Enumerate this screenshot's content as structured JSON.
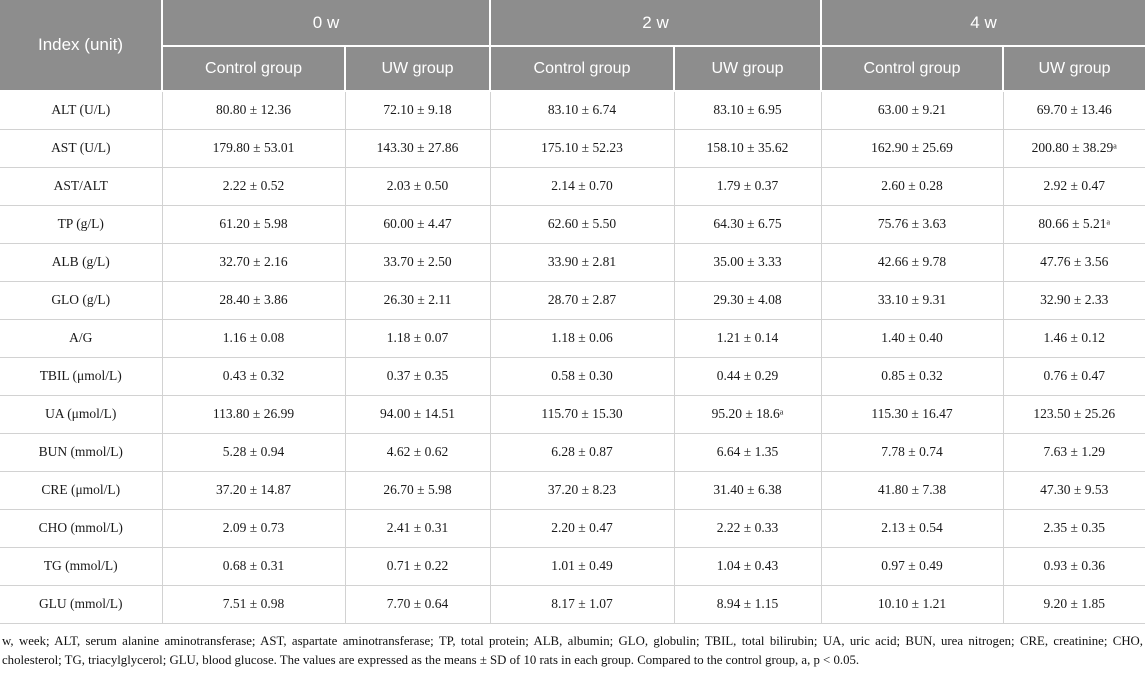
{
  "colors": {
    "header_bg": "#8d8d8d",
    "header_text": "#ffffff",
    "body_border": "#d2d2d2",
    "body_text": "#1a1a1a"
  },
  "table": {
    "header": {
      "index_label": "Index (unit)",
      "groups": [
        {
          "label": "0 w"
        },
        {
          "label": "2 w"
        },
        {
          "label": "4 w"
        }
      ],
      "subheaders": [
        "Control group",
        "UW group",
        "Control group",
        "UW group",
        "Control group",
        "UW group"
      ]
    },
    "rows": [
      {
        "index": "ALT (U/L)",
        "values": [
          "80.80 ± 12.36",
          "72.10 ± 9.18",
          "83.10 ± 6.74",
          "83.10 ± 6.95",
          "63.00 ± 9.21",
          "69.70 ± 13.46"
        ]
      },
      {
        "index": "AST (U/L)",
        "values": [
          "179.80 ± 53.01",
          "143.30 ± 27.86",
          "175.10 ± 52.23",
          "158.10 ± 35.62",
          "162.90 ± 25.69",
          "200.80 ± 38.29ᵃ"
        ]
      },
      {
        "index": "AST/ALT",
        "values": [
          "2.22 ± 0.52",
          "2.03 ± 0.50",
          "2.14 ± 0.70",
          "1.79 ± 0.37",
          "2.60 ± 0.28",
          "2.92 ± 0.47"
        ]
      },
      {
        "index": "TP (g/L)",
        "values": [
          "61.20 ± 5.98",
          "60.00 ± 4.47",
          "62.60 ± 5.50",
          "64.30 ± 6.75",
          "75.76 ± 3.63",
          "80.66 ± 5.21ᵃ"
        ]
      },
      {
        "index": "ALB (g/L)",
        "values": [
          "32.70 ± 2.16",
          "33.70 ± 2.50",
          "33.90 ± 2.81",
          "35.00 ± 3.33",
          "42.66 ± 9.78",
          "47.76 ± 3.56"
        ]
      },
      {
        "index": "GLO (g/L)",
        "values": [
          "28.40 ± 3.86",
          "26.30 ± 2.11",
          "28.70 ± 2.87",
          "29.30 ± 4.08",
          "33.10 ± 9.31",
          "32.90 ± 2.33"
        ]
      },
      {
        "index": "A/G",
        "values": [
          "1.16 ± 0.08",
          "1.18 ± 0.07",
          "1.18 ± 0.06",
          "1.21 ± 0.14",
          "1.40 ± 0.40",
          "1.46 ± 0.12"
        ]
      },
      {
        "index": "TBIL (μmol/L)",
        "values": [
          "0.43 ± 0.32",
          "0.37 ± 0.35",
          "0.58 ± 0.30",
          "0.44 ± 0.29",
          "0.85 ± 0.32",
          "0.76 ± 0.47"
        ]
      },
      {
        "index": "UA (μmol/L)",
        "values": [
          "113.80 ± 26.99",
          "94.00 ± 14.51",
          "115.70 ± 15.30",
          "95.20 ± 18.6ᵃ",
          "115.30 ± 16.47",
          "123.50 ± 25.26"
        ]
      },
      {
        "index": "BUN (mmol/L)",
        "values": [
          "5.28 ± 0.94",
          "4.62 ± 0.62",
          "6.28 ± 0.87",
          "6.64 ± 1.35",
          "7.78 ± 0.74",
          "7.63 ± 1.29"
        ]
      },
      {
        "index": "CRE (μmol/L)",
        "values": [
          "37.20 ± 14.87",
          "26.70 ± 5.98",
          "37.20 ± 8.23",
          "31.40 ± 6.38",
          "41.80 ± 7.38",
          "47.30 ± 9.53"
        ]
      },
      {
        "index": "CHO (mmol/L)",
        "values": [
          "2.09 ± 0.73",
          "2.41 ± 0.31",
          "2.20 ± 0.47",
          "2.22 ± 0.33",
          "2.13 ± 0.54",
          "2.35 ± 0.35"
        ]
      },
      {
        "index": "TG (mmol/L)",
        "values": [
          "0.68 ± 0.31",
          "0.71 ± 0.22",
          "1.01 ± 0.49",
          "1.04 ± 0.43",
          "0.97 ± 0.49",
          "0.93 ± 0.36"
        ]
      },
      {
        "index": "GLU (mmol/L)",
        "values": [
          "7.51 ± 0.98",
          "7.70 ± 0.64",
          "8.17 ± 1.07",
          "8.94 ± 1.15",
          "10.10 ± 1.21",
          "9.20 ± 1.85"
        ]
      }
    ],
    "footnote": "w, week; ALT, serum alanine aminotransferase; AST, aspartate aminotransferase; TP, total protein; ALB, albumin; GLO, globulin; TBIL, total bilirubin; UA, uric acid; BUN, urea nitrogen; CRE, creatinine; CHO, cholesterol; TG, triacylglycerol; GLU, blood glucose. The values are expressed as the means ± SD of 10 rats in each group. Compared to the control group, a, p < 0.05."
  }
}
